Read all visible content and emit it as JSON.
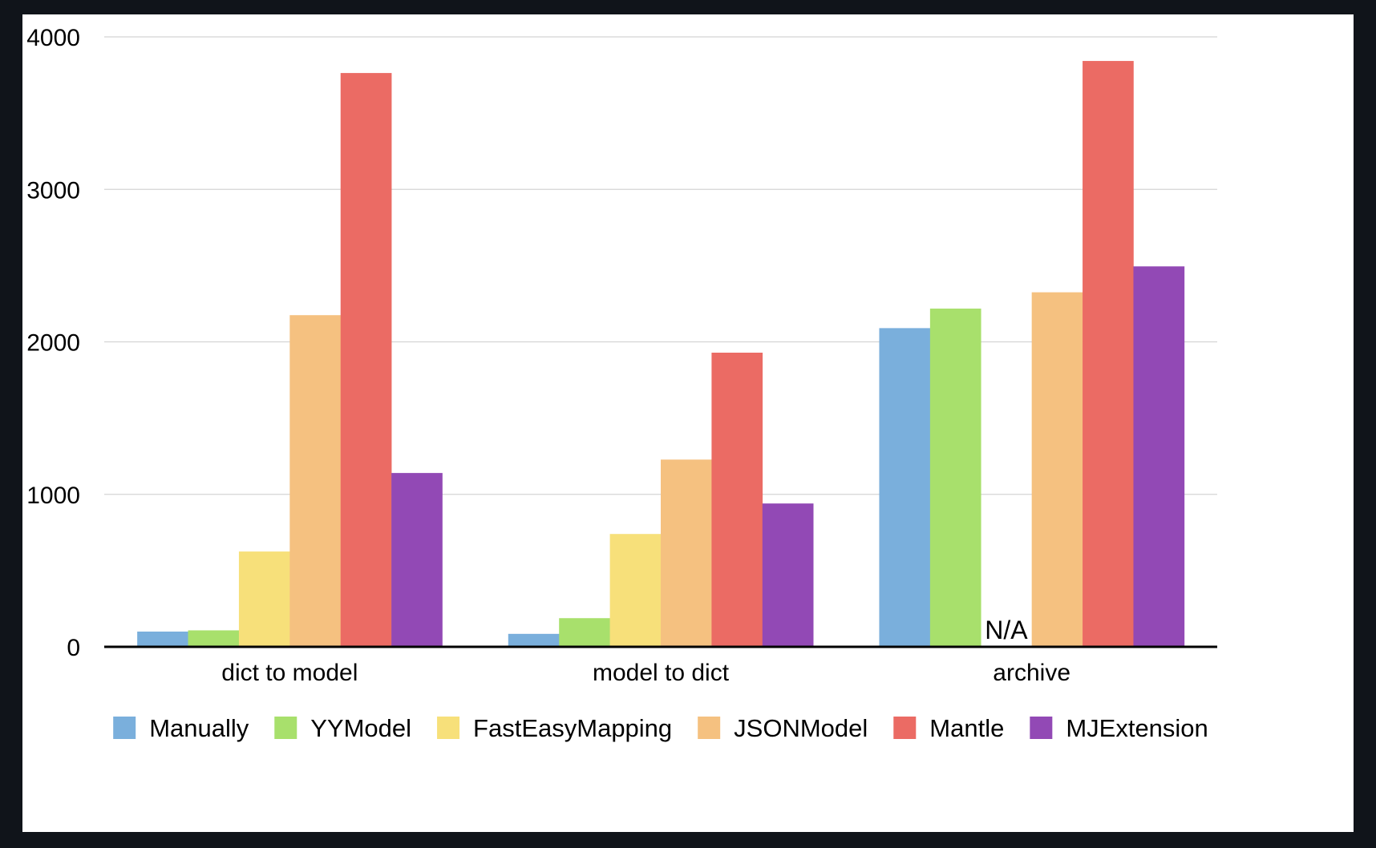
{
  "chart_data": {
    "type": "bar",
    "categories": [
      "dict to model",
      "model to dict",
      "archive"
    ],
    "series": [
      {
        "name": "Manually",
        "color": "#7AAFDC",
        "values": [
          100,
          85,
          2090
        ]
      },
      {
        "name": "YYModel",
        "color": "#A8E06C",
        "values": [
          108,
          188,
          2218
        ]
      },
      {
        "name": "FastEasyMapping",
        "color": "#F7E07A",
        "values": [
          625,
          740,
          null
        ]
      },
      {
        "name": "JSONModel",
        "color": "#F5C180",
        "values": [
          2175,
          1228,
          2325
        ]
      },
      {
        "name": "Mantle",
        "color": "#EB6B64",
        "values": [
          3763,
          1929,
          3842
        ]
      },
      {
        "name": "MJExtension",
        "color": "#9249B5",
        "values": [
          1140,
          940,
          2495
        ]
      }
    ],
    "yticks": [
      0,
      1000,
      2000,
      3000,
      4000
    ],
    "ylim": [
      0,
      4000
    ],
    "missing_label": "N/A",
    "legend_position": "bottom",
    "grid": true,
    "title": "",
    "xlabel": "",
    "ylabel": ""
  }
}
